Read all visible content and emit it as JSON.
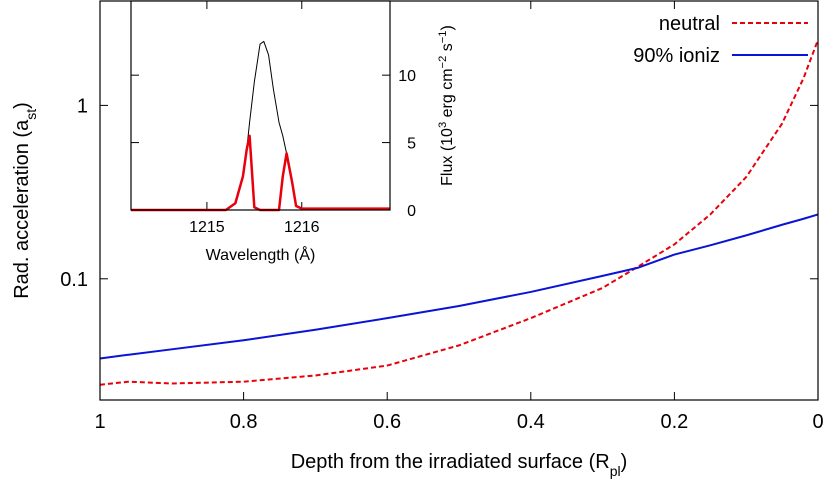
{
  "chart_data": [
    {
      "type": "line",
      "xlabel": [
        "Depth from the irradiated surface (R",
        "pl",
        ")"
      ],
      "ylabel": [
        "Rad. acceleration (a",
        "st",
        ")"
      ],
      "label_script": "sub",
      "xlim": [
        1,
        0
      ],
      "xticks": [
        1,
        0.8,
        0.6,
        0.4,
        0.2,
        0
      ],
      "ylim": [
        0.02,
        4
      ],
      "yticks": [
        0.1,
        1
      ],
      "ylog": true,
      "legend": "upper right",
      "x": [
        1,
        0.96,
        0.9,
        0.8,
        0.7,
        0.6,
        0.5,
        0.4,
        0.3,
        0.25,
        0.2,
        0.15,
        0.1,
        0.05,
        0.02,
        0
      ],
      "series": [
        {
          "name": "neutral",
          "color": "#e8000b",
          "dash": true,
          "values": [
            0.0245,
            0.0255,
            0.0249,
            0.0255,
            0.0277,
            0.0316,
            0.0413,
            0.0593,
            0.0886,
            0.118,
            0.158,
            0.235,
            0.386,
            0.786,
            1.44,
            2.39
          ]
        },
        {
          "name": "90% ioniz",
          "color": "#0a14d4",
          "dash": false,
          "values": [
            0.0347,
            0.0365,
            0.0392,
            0.0442,
            0.0508,
            0.0593,
            0.0697,
            0.084,
            0.104,
            0.116,
            0.138,
            0.156,
            0.178,
            0.205,
            0.222,
            0.235
          ]
        }
      ]
    },
    {
      "type": "line",
      "xlabel": [
        "Wavelength (Å)"
      ],
      "ylabel": [
        "Flux (10",
        "3",
        " erg cm",
        "−2",
        " s",
        "−1",
        ")"
      ],
      "label_script": "sup",
      "xlim": [
        1214.2,
        1216.93
      ],
      "xticks": [
        1215,
        1216
      ],
      "ylim": [
        0,
        15.5
      ],
      "yticks": [
        0,
        5,
        10
      ],
      "ylog": false,
      "x": [
        1214.2,
        1215.2,
        1215.3,
        1215.38,
        1215.42,
        1215.45,
        1215.5,
        1215.56,
        1215.6,
        1215.65,
        1215.7,
        1215.76,
        1215.8,
        1215.84,
        1215.9,
        1215.94,
        1216,
        1216.93
      ],
      "series": [
        {
          "color": "#000000",
          "dash": false,
          "values": [
            0,
            0,
            0.5,
            2.5,
            4.5,
            6.5,
            9.5,
            12.3,
            12.5,
            11.5,
            9,
            6.5,
            5.5,
            4.2,
            2,
            0.3,
            0.1,
            0.1
          ]
        },
        {
          "color": "#e8000b",
          "dash": false,
          "values": [
            0,
            0,
            0.5,
            2.5,
            4.5,
            5.5,
            0.2,
            0,
            0,
            0,
            0,
            0,
            2.5,
            4.2,
            2,
            0.3,
            0.1,
            0.1
          ]
        }
      ]
    }
  ]
}
